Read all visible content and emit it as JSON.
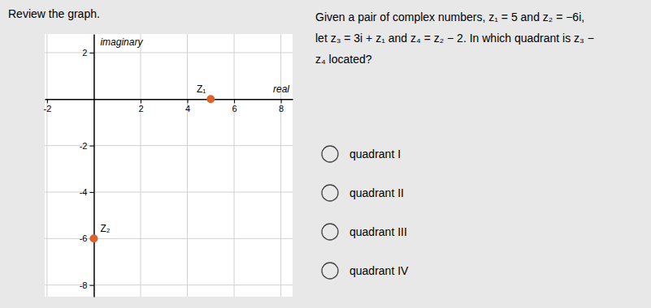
{
  "chart_data": {
    "type": "scatter",
    "title": "Review the graph.",
    "x_label": "real",
    "y_label": "imaginary",
    "x": [
      5,
      0
    ],
    "values": [
      0,
      -6
    ],
    "labels": [
      "Z₁",
      "Z₂"
    ],
    "color": "#e0622a",
    "xlim": [
      -2.1,
      8.5
    ],
    "ylim": [
      -8.5,
      2.8
    ],
    "xticks": [
      -2,
      2,
      4,
      6,
      8
    ],
    "yticks": [
      -8,
      -6,
      -4,
      -2,
      2
    ],
    "grid": true,
    "annotations": [
      [
        "Given a pair of complex numbers, z₁ = 5 and z₂ = −6i,",
        "let z₃ = 3i + z₁ and z₄ = z₂ − 2. In which quadrant is z₃ −",
        "z₄ located?"
      ],
      [
        "quadrant I",
        "quadrant II",
        "quadrant III",
        "quadrant IV"
      ]
    ]
  }
}
